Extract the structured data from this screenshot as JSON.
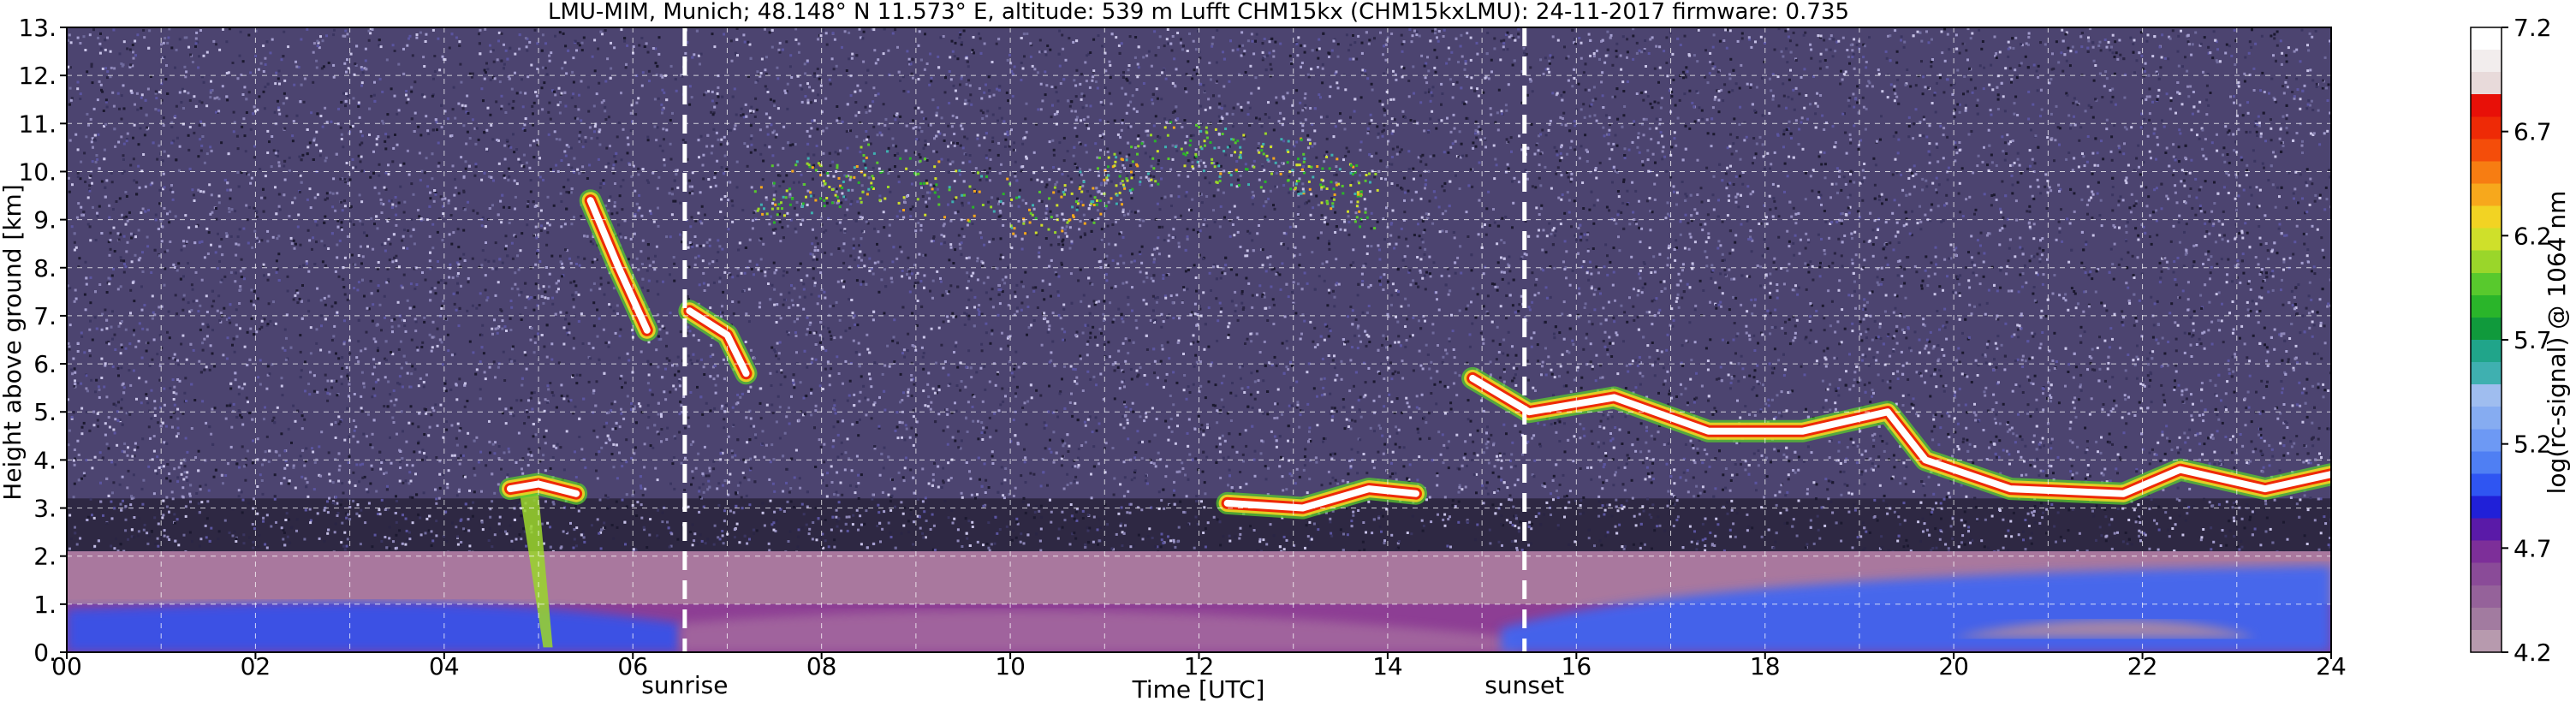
{
  "chart_data": {
    "type": "heatmap",
    "title": "LMU-MIM, Munich; 48.148° N 11.573° E, altitude: 539 m    Lufft CHM15kx (CHM15kxLMU): 24-11-2017    firmware: 0.735",
    "xlabel": "Time [UTC]",
    "ylabel": "Height above ground [km]",
    "xlim": [
      0,
      24
    ],
    "ylim": [
      0,
      13
    ],
    "x_ticks": [
      "00",
      "02",
      "04",
      "06",
      "08",
      "10",
      "12",
      "14",
      "16",
      "18",
      "20",
      "22",
      "24"
    ],
    "y_ticks": [
      "0.",
      "1.",
      "2.",
      "3.",
      "4.",
      "5.",
      "6.",
      "7.",
      "8.",
      "9.",
      "10.",
      "11.",
      "12.",
      "13."
    ],
    "grid": true,
    "annotations": [
      {
        "label": "sunrise",
        "x": 6.55
      },
      {
        "label": "sunset",
        "x": 15.45
      }
    ],
    "colorbar": {
      "label": "log(rc-signal) @ 1064 nm",
      "range": [
        4.2,
        7.2
      ],
      "ticks": [
        "4.2",
        "4.7",
        "5.2",
        "5.7",
        "6.2",
        "6.7",
        "7.2"
      ],
      "colors": [
        "#b79aae",
        "#a27ba0",
        "#95629a",
        "#8a4b98",
        "#7d2f99",
        "#5a1aa8",
        "#2020d8",
        "#2f55f2",
        "#4f7ff3",
        "#6d99f4",
        "#86acf1",
        "#9fbdef",
        "#3fb0b0",
        "#20a58a",
        "#109a3c",
        "#2ab52a",
        "#58c92d",
        "#9ad62a",
        "#cfe02a",
        "#f2d323",
        "#f7a81c",
        "#f77d12",
        "#f44d0a",
        "#ee2a06",
        "#e81008",
        "#e8dada",
        "#f2eded",
        "#ffffff"
      ]
    },
    "layers": [
      {
        "kind": "noise",
        "x": [
          0,
          24
        ],
        "y": [
          2.1,
          13
        ]
      },
      {
        "kind": "aerosol",
        "x": [
          0,
          24
        ],
        "y": [
          0,
          2.1
        ]
      },
      {
        "kind": "cloud",
        "points": [
          [
            4.7,
            3.4
          ],
          [
            5.0,
            3.5
          ],
          [
            5.4,
            3.3
          ]
        ]
      },
      {
        "kind": "cloud",
        "points": [
          [
            12.3,
            3.1
          ],
          [
            13.1,
            3.0
          ],
          [
            13.8,
            3.4
          ],
          [
            14.3,
            3.3
          ]
        ]
      },
      {
        "kind": "cloud",
        "points": [
          [
            14.9,
            5.7
          ],
          [
            15.5,
            5.0
          ],
          [
            16.4,
            5.3
          ],
          [
            17.4,
            4.6
          ],
          [
            18.4,
            4.6
          ],
          [
            19.3,
            5.0
          ],
          [
            19.7,
            4.0
          ],
          [
            20.6,
            3.4
          ],
          [
            21.8,
            3.3
          ],
          [
            22.4,
            3.8
          ],
          [
            23.3,
            3.4
          ],
          [
            24.0,
            3.7
          ]
        ]
      },
      {
        "kind": "cloud",
        "points": [
          [
            5.55,
            9.4
          ],
          [
            5.85,
            8.0
          ],
          [
            6.15,
            6.7
          ]
        ]
      },
      {
        "kind": "cloud",
        "points": [
          [
            6.6,
            7.1
          ],
          [
            7.0,
            6.6
          ],
          [
            7.2,
            5.8
          ]
        ]
      },
      {
        "kind": "cirrus",
        "points": [
          [
            7.3,
            9.5
          ],
          [
            8.5,
            10.0
          ],
          [
            10.5,
            9.1
          ],
          [
            11.6,
            10.5
          ],
          [
            13.0,
            10.2
          ],
          [
            13.8,
            9.4
          ]
        ]
      }
    ]
  }
}
